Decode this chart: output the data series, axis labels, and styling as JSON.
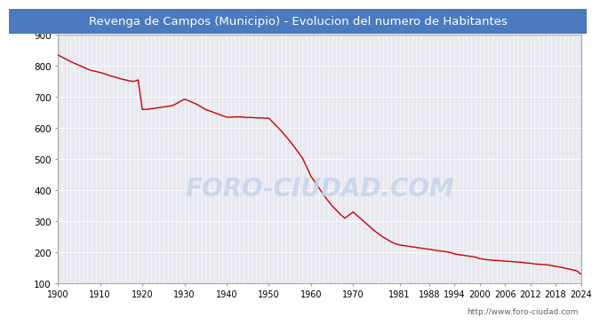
{
  "title": "Revenga de Campos (Municipio) - Evolucion del numero de Habitantes",
  "title_color": "#ffffff",
  "title_bg_color": "#4a7abf",
  "plot_bg_color": "#e8e8f0",
  "grid_color": "#ffffff",
  "line_color": "#cc0000",
  "watermark_text": "FORO-CIUDAD.COM",
  "footer_text": "http://www.foro-ciudad.com",
  "outer_bg_color": "#ffffff",
  "xlim": [
    1900,
    2024
  ],
  "ylim": [
    100,
    900
  ],
  "yticks": [
    100,
    200,
    300,
    400,
    500,
    600,
    700,
    800,
    900
  ],
  "xtick_labels": [
    "1900",
    "1910",
    "1920",
    "1930",
    "1940",
    "1950",
    "1960",
    "1970",
    "1981",
    "1988",
    "1994",
    "2000",
    "2006",
    "2012",
    "2018",
    "2024"
  ],
  "xtick_positions": [
    1900,
    1910,
    1920,
    1930,
    1940,
    1950,
    1960,
    1970,
    1981,
    1988,
    1994,
    2000,
    2006,
    2012,
    2018,
    2024
  ],
  "data_x": [
    1900,
    1901,
    1902,
    1903,
    1904,
    1905,
    1906,
    1907,
    1908,
    1909,
    1910,
    1911,
    1912,
    1913,
    1914,
    1915,
    1916,
    1917,
    1918,
    1919,
    1920,
    1921,
    1922,
    1923,
    1924,
    1925,
    1926,
    1927,
    1928,
    1929,
    1930,
    1931,
    1932,
    1933,
    1934,
    1935,
    1936,
    1937,
    1938,
    1939,
    1940,
    1941,
    1942,
    1943,
    1944,
    1945,
    1946,
    1947,
    1948,
    1949,
    1950,
    1951,
    1952,
    1953,
    1954,
    1955,
    1956,
    1957,
    1958,
    1959,
    1960,
    1961,
    1962,
    1963,
    1964,
    1965,
    1966,
    1967,
    1968,
    1969,
    1970,
    1971,
    1972,
    1973,
    1974,
    1975,
    1976,
    1977,
    1978,
    1979,
    1980,
    1981,
    1982,
    1983,
    1984,
    1985,
    1986,
    1987,
    1988,
    1989,
    1990,
    1991,
    1992,
    1993,
    1994,
    1995,
    1996,
    1997,
    1998,
    1999,
    2000,
    2001,
    2002,
    2003,
    2004,
    2005,
    2006,
    2007,
    2008,
    2009,
    2010,
    2011,
    2012,
    2013,
    2014,
    2015,
    2016,
    2017,
    2018,
    2019,
    2020,
    2021,
    2022,
    2023,
    2024
  ],
  "data_y": [
    835,
    828,
    821,
    814,
    808,
    802,
    796,
    790,
    785,
    782,
    779,
    775,
    770,
    766,
    762,
    758,
    755,
    752,
    750,
    755,
    660,
    660,
    662,
    664,
    666,
    668,
    670,
    672,
    678,
    686,
    693,
    688,
    682,
    676,
    668,
    660,
    655,
    650,
    645,
    640,
    635,
    635,
    636,
    636,
    635,
    634,
    634,
    633,
    633,
    632,
    632,
    618,
    604,
    590,
    574,
    558,
    540,
    522,
    503,
    474,
    445,
    425,
    405,
    385,
    367,
    350,
    336,
    322,
    310,
    320,
    330,
    318,
    306,
    294,
    282,
    270,
    260,
    250,
    242,
    234,
    228,
    224,
    222,
    220,
    218,
    216,
    214,
    212,
    210,
    208,
    206,
    204,
    202,
    200,
    195,
    193,
    191,
    189,
    187,
    185,
    180,
    178,
    176,
    175,
    174,
    173,
    172,
    171,
    170,
    169,
    168,
    166,
    165,
    163,
    162,
    161,
    160,
    158,
    155,
    153,
    150,
    147,
    144,
    141,
    130
  ]
}
